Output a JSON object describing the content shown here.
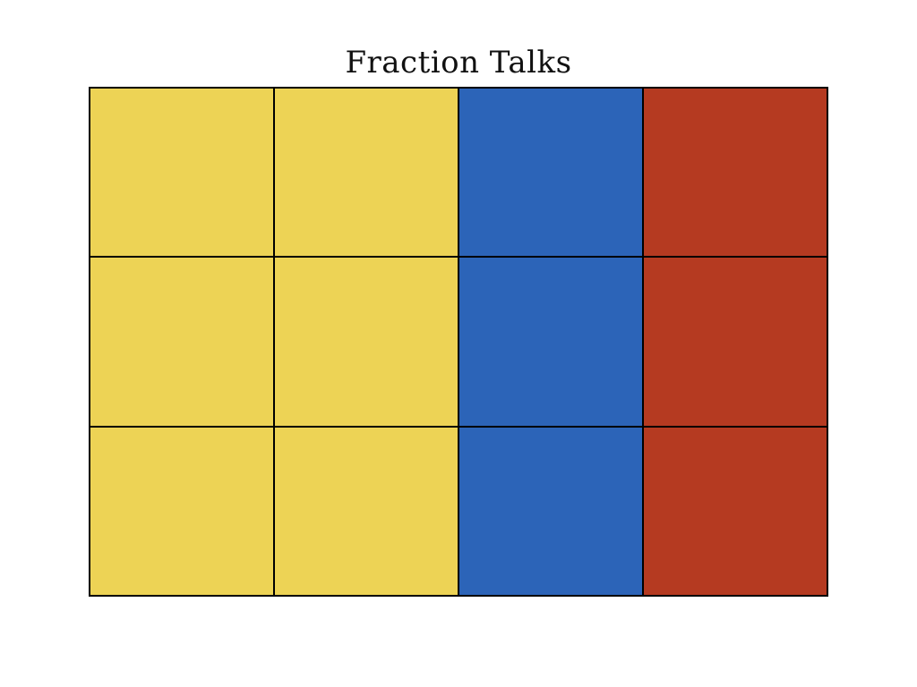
{
  "page": {
    "background_color": "#FFFFFF",
    "title": "Fraction Talks",
    "title_color": "#111111"
  },
  "grid": {
    "rows": 3,
    "cols": 4,
    "line_color": "#000000",
    "column_colors": [
      "#EDD355",
      "#EDD355",
      "#2C64B8",
      "#B53A21"
    ],
    "color_names_by_column": [
      "yellow",
      "yellow",
      "blue",
      "red"
    ],
    "fractions": {
      "yellow": "2/4",
      "blue": "1/4",
      "red": "1/4"
    },
    "cells": [
      {
        "row": 1,
        "col": 1,
        "color": "#EDD355",
        "color_name": "yellow"
      },
      {
        "row": 1,
        "col": 2,
        "color": "#EDD355",
        "color_name": "yellow"
      },
      {
        "row": 1,
        "col": 3,
        "color": "#2C64B8",
        "color_name": "blue"
      },
      {
        "row": 1,
        "col": 4,
        "color": "#B53A21",
        "color_name": "red"
      },
      {
        "row": 2,
        "col": 1,
        "color": "#EDD355",
        "color_name": "yellow"
      },
      {
        "row": 2,
        "col": 2,
        "color": "#EDD355",
        "color_name": "yellow"
      },
      {
        "row": 2,
        "col": 3,
        "color": "#2C64B8",
        "color_name": "blue"
      },
      {
        "row": 2,
        "col": 4,
        "color": "#B53A21",
        "color_name": "red"
      },
      {
        "row": 3,
        "col": 1,
        "color": "#EDD355",
        "color_name": "yellow"
      },
      {
        "row": 3,
        "col": 2,
        "color": "#EDD355",
        "color_name": "yellow"
      },
      {
        "row": 3,
        "col": 3,
        "color": "#2C64B8",
        "color_name": "blue"
      },
      {
        "row": 3,
        "col": 4,
        "color": "#B53A21",
        "color_name": "red"
      }
    ]
  }
}
